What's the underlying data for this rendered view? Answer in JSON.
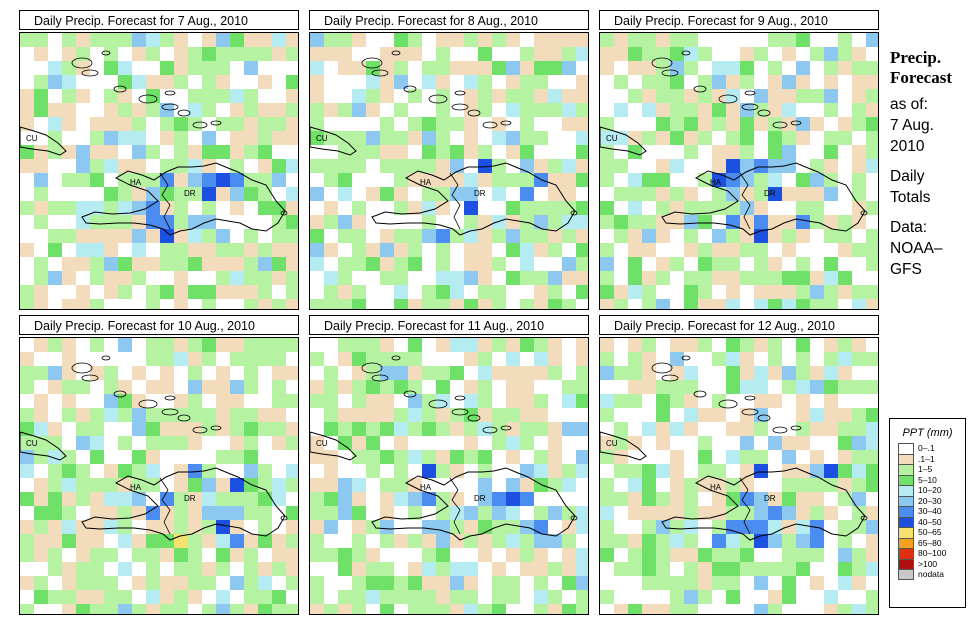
{
  "panels": [
    {
      "title": "Daily Precip. Forecast for  7 Aug., 2010",
      "seed": 7
    },
    {
      "title": "Daily Precip. Forecast for  8 Aug., 2010",
      "seed": 8
    },
    {
      "title": "Daily Precip. Forecast for  9 Aug., 2010",
      "seed": 9
    },
    {
      "title": "Daily Precip. Forecast for  10 Aug., 2010",
      "seed": 10
    },
    {
      "title": "Daily Precip. Forecast for  11 Aug., 2010",
      "seed": 11
    },
    {
      "title": "Daily Precip. Forecast for  12 Aug., 2010",
      "seed": 12
    }
  ],
  "map_labels": {
    "cu": "CU",
    "ha": "HA",
    "dr": "DR"
  },
  "sidebar": {
    "title_line1": "Precip.",
    "title_line2": "Forecast",
    "asof": "as of:",
    "date_line1": "7 Aug.",
    "date_line2": "2010",
    "daily1": "Daily",
    "daily2": "Totals",
    "data1": "Data:",
    "data2": "NOAA–",
    "data3": "GFS"
  },
  "legend": {
    "title": "PPT (mm)",
    "items": [
      {
        "label": "0–.1",
        "color": "#ffffff"
      },
      {
        "label": ".1–1",
        "color": "#f2dcbb"
      },
      {
        "label": "1–5",
        "color": "#b5f2a2"
      },
      {
        "label": "5–10",
        "color": "#6fe068"
      },
      {
        "label": "10–20",
        "color": "#b4ecf2"
      },
      {
        "label": "20–30",
        "color": "#8cc8f0"
      },
      {
        "label": "30–40",
        "color": "#4a8cf0"
      },
      {
        "label": "40–50",
        "color": "#1c50e0"
      },
      {
        "label": "50–65",
        "color": "#f5e070"
      },
      {
        "label": "65–80",
        "color": "#f5a020"
      },
      {
        "label": "80–100",
        "color": "#e03010"
      },
      {
        "label": ">100",
        "color": "#b01010"
      },
      {
        "label": "nodata",
        "color": "#c8c8c8"
      }
    ]
  }
}
